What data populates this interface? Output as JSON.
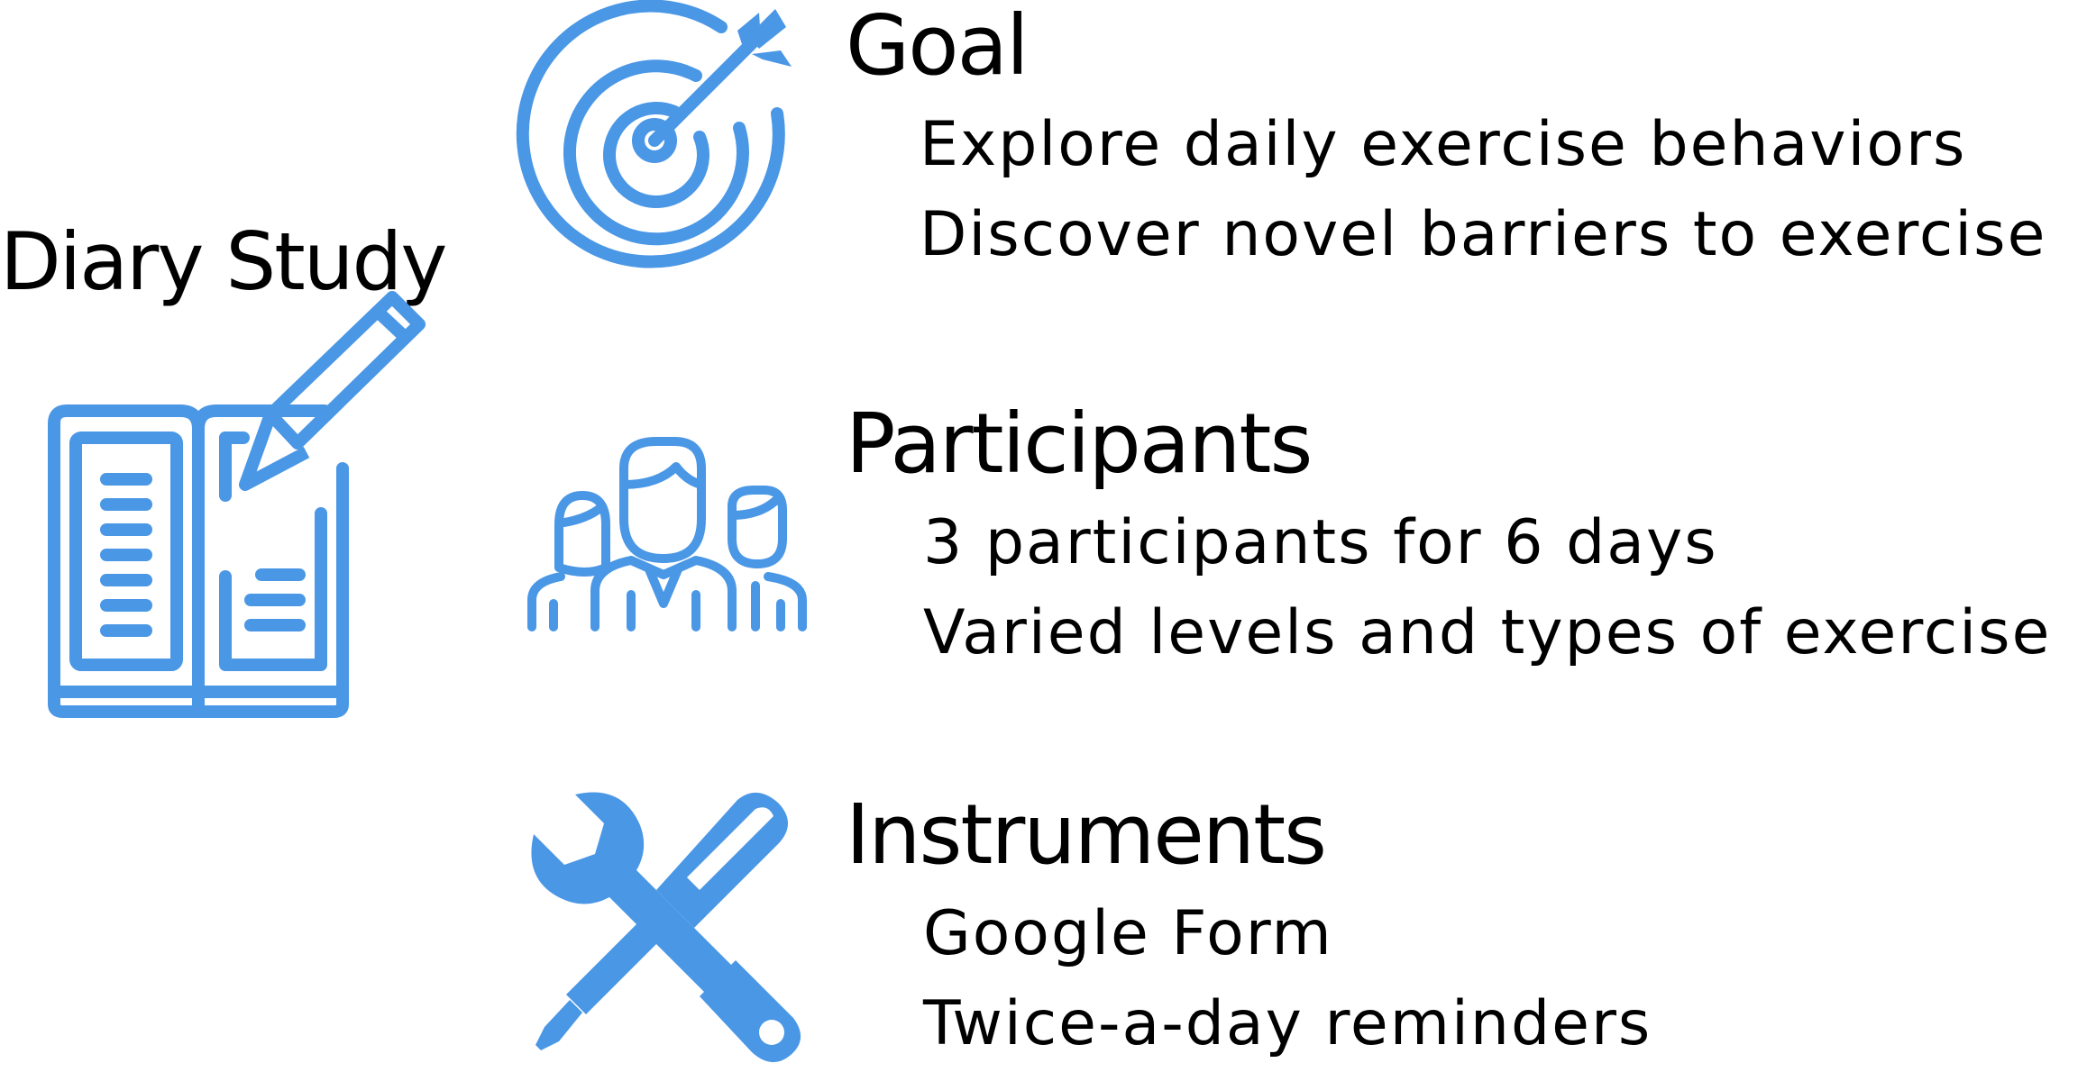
{
  "left_panel": {
    "title": "Diary Study",
    "icon": "diary-book-pencil-icon"
  },
  "sections": [
    {
      "heading": "Goal",
      "icon": "target-arrow-icon",
      "items": [
        "Explore daily exercise behaviors",
        "Discover novel barriers to exercise"
      ]
    },
    {
      "heading": "Participants",
      "icon": "group-people-icon",
      "items": [
        "3 participants for 6 days",
        "Varied levels and types of exercise"
      ]
    },
    {
      "heading": "Instruments",
      "icon": "wrench-screwdriver-icon",
      "items": [
        "Google Form",
        "Twice-a-day reminders"
      ]
    }
  ],
  "colors": {
    "icon_blue": "#4a97e6",
    "text": "#000000",
    "background": "#ffffff"
  }
}
